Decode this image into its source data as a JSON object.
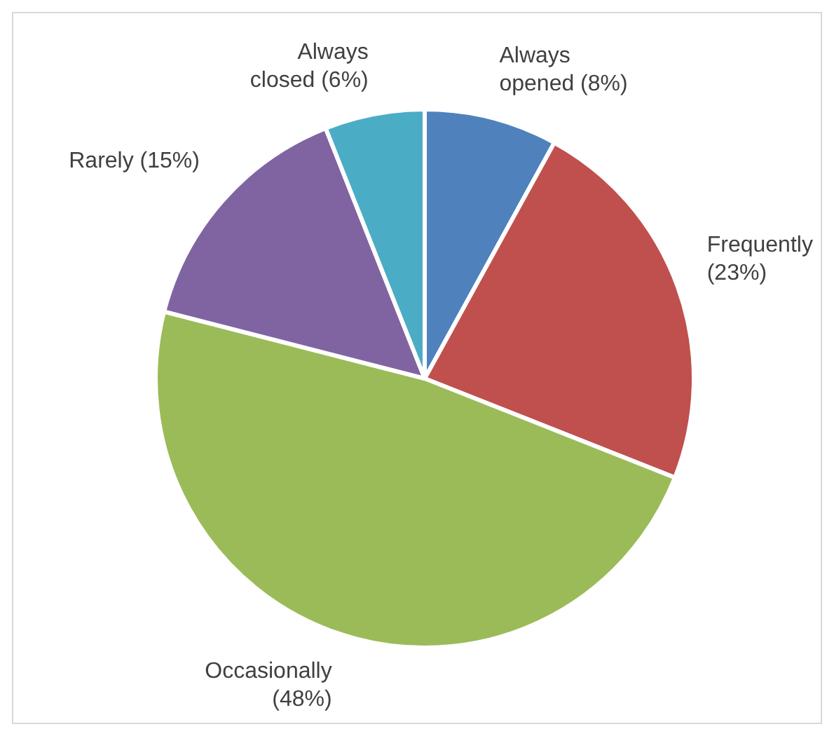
{
  "chart_data": {
    "type": "pie",
    "categories": [
      "Always opened",
      "Frequently",
      "Occasionally",
      "Rarely",
      "Always closed"
    ],
    "values": [
      8,
      23,
      48,
      15,
      6
    ],
    "colors": [
      "#4f81bd",
      "#c0504d",
      "#9bbb59",
      "#8064a2",
      "#4bacc6"
    ],
    "value_labels": [
      "(8%)",
      "(23%)",
      "(48%)",
      "(15%)",
      "(6%)"
    ]
  }
}
